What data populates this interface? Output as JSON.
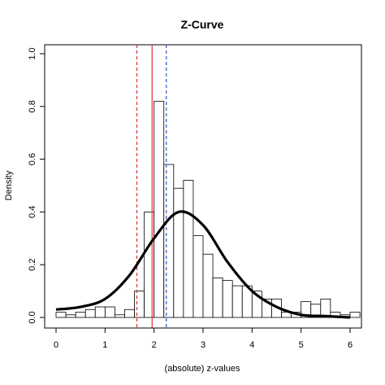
{
  "chart_data": {
    "type": "bar",
    "title": "Z-Curve",
    "xlabel": "(absolute) z-values",
    "ylabel": "Density",
    "xlim": [
      0,
      6
    ],
    "ylim": [
      0,
      1.0
    ],
    "x_ticks": [
      0,
      1,
      2,
      3,
      4,
      5,
      6
    ],
    "x_tick_labels": [
      "0",
      "1",
      "2",
      "3",
      "4",
      "5",
      "6"
    ],
    "y_ticks": [
      0.0,
      0.2,
      0.4,
      0.6,
      0.8,
      1.0
    ],
    "y_tick_labels": [
      "0.0",
      "0.2",
      "0.4",
      "0.6",
      "0.8",
      "1.0"
    ],
    "histogram": {
      "bin_width": 0.2,
      "bins": [
        {
          "x0": 0.0,
          "density": 0.02
        },
        {
          "x0": 0.2,
          "density": 0.01
        },
        {
          "x0": 0.4,
          "density": 0.02
        },
        {
          "x0": 0.6,
          "density": 0.03
        },
        {
          "x0": 0.8,
          "density": 0.04
        },
        {
          "x0": 1.0,
          "density": 0.04
        },
        {
          "x0": 1.2,
          "density": 0.01
        },
        {
          "x0": 1.4,
          "density": 0.03
        },
        {
          "x0": 1.6,
          "density": 0.1
        },
        {
          "x0": 1.8,
          "density": 0.4
        },
        {
          "x0": 2.0,
          "density": 0.82
        },
        {
          "x0": 2.2,
          "density": 0.58
        },
        {
          "x0": 2.4,
          "density": 0.49
        },
        {
          "x0": 2.6,
          "density": 0.52
        },
        {
          "x0": 2.8,
          "density": 0.31
        },
        {
          "x0": 3.0,
          "density": 0.24
        },
        {
          "x0": 3.2,
          "density": 0.15
        },
        {
          "x0": 3.4,
          "density": 0.14
        },
        {
          "x0": 3.6,
          "density": 0.12
        },
        {
          "x0": 3.8,
          "density": 0.12
        },
        {
          "x0": 4.0,
          "density": 0.1
        },
        {
          "x0": 4.2,
          "density": 0.07
        },
        {
          "x0": 4.4,
          "density": 0.07
        },
        {
          "x0": 4.6,
          "density": 0.02
        },
        {
          "x0": 4.8,
          "density": 0.02
        },
        {
          "x0": 5.0,
          "density": 0.06
        },
        {
          "x0": 5.2,
          "density": 0.05
        },
        {
          "x0": 5.4,
          "density": 0.07
        },
        {
          "x0": 5.6,
          "density": 0.02
        },
        {
          "x0": 5.8,
          "density": 0.01
        },
        {
          "x0": 6.0,
          "density": 0.02
        }
      ]
    },
    "curve": {
      "points": [
        {
          "x": 0.0,
          "y": 0.03
        },
        {
          "x": 0.5,
          "y": 0.04
        },
        {
          "x": 1.0,
          "y": 0.07
        },
        {
          "x": 1.5,
          "y": 0.16
        },
        {
          "x": 2.0,
          "y": 0.3
        },
        {
          "x": 2.5,
          "y": 0.4
        },
        {
          "x": 3.0,
          "y": 0.35
        },
        {
          "x": 3.5,
          "y": 0.21
        },
        {
          "x": 4.0,
          "y": 0.1
        },
        {
          "x": 4.5,
          "y": 0.04
        },
        {
          "x": 5.0,
          "y": 0.01
        },
        {
          "x": 5.5,
          "y": 0.005
        },
        {
          "x": 6.0,
          "y": 0.0
        }
      ],
      "color": "#000000"
    },
    "vlines": [
      {
        "x": 1.65,
        "color": "#e03030",
        "style": "dashed"
      },
      {
        "x": 1.96,
        "color": "#e03030",
        "style": "solid"
      },
      {
        "x": 2.25,
        "color": "#3050d0",
        "style": "dashed"
      }
    ],
    "grid": false
  }
}
